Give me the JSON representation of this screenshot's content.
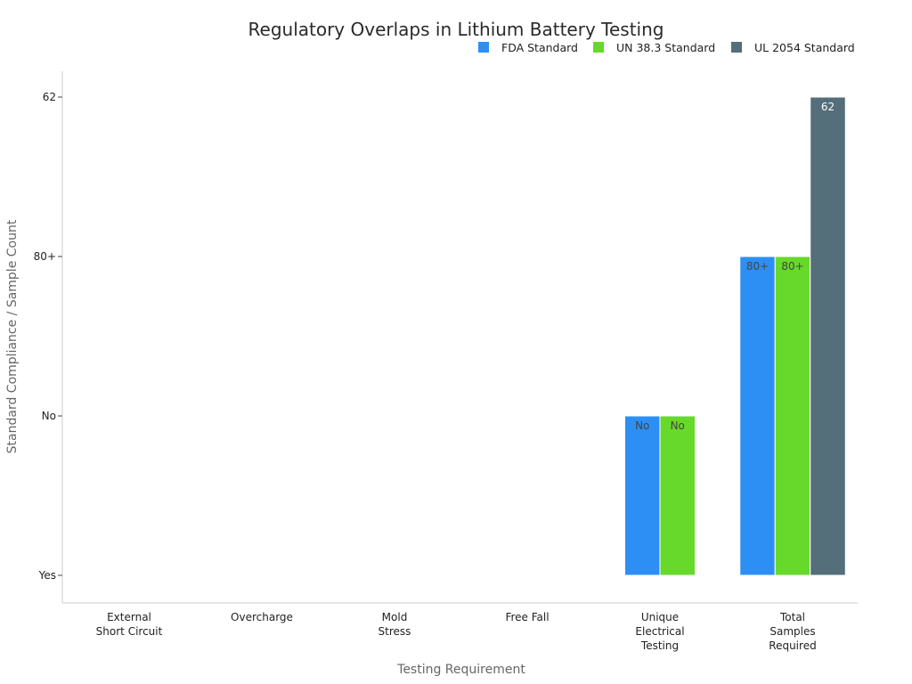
{
  "chart_data": {
    "type": "bar",
    "title": "Regulatory Overlaps in Lithium Battery Testing",
    "xlabel": "Testing Requirement",
    "ylabel": "Standard Compliance / Sample Count",
    "y_axis_type": "categorical",
    "y_categories": [
      "Yes",
      "No",
      "80+",
      "62"
    ],
    "categories": [
      [
        "External",
        "Short Circuit"
      ],
      [
        "Overcharge"
      ],
      [
        "Mold",
        "Stress"
      ],
      [
        "Free Fall"
      ],
      [
        "Unique",
        "Electrical",
        "Testing"
      ],
      [
        "Total",
        "Samples",
        "Required"
      ]
    ],
    "series": [
      {
        "name": "FDA Standard",
        "color": "#2d8ff4",
        "label_color": "#444444",
        "values": [
          "Yes",
          "Yes",
          "Yes",
          "Yes",
          "No",
          "80+"
        ]
      },
      {
        "name": "UN 38.3 Standard",
        "color": "#66d92a",
        "label_color": "#444444",
        "values": [
          "Yes",
          "Yes",
          "Yes",
          "Yes",
          "No",
          "80+"
        ]
      },
      {
        "name": "UL 2054 Standard",
        "color": "#546e7a",
        "label_color": "#ffffff",
        "values": [
          "Yes",
          "Yes",
          "Yes",
          "Yes",
          null,
          "62"
        ]
      }
    ],
    "legend_position": "top-right",
    "grid": false
  }
}
